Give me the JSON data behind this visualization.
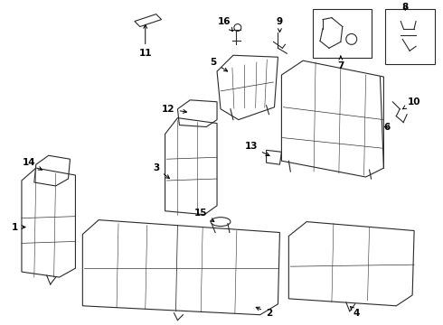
{
  "bg_color": "#ffffff",
  "line_color": "#2a2a2a",
  "lw": 0.8,
  "figsize": [
    4.9,
    3.6
  ],
  "dpi": 100
}
